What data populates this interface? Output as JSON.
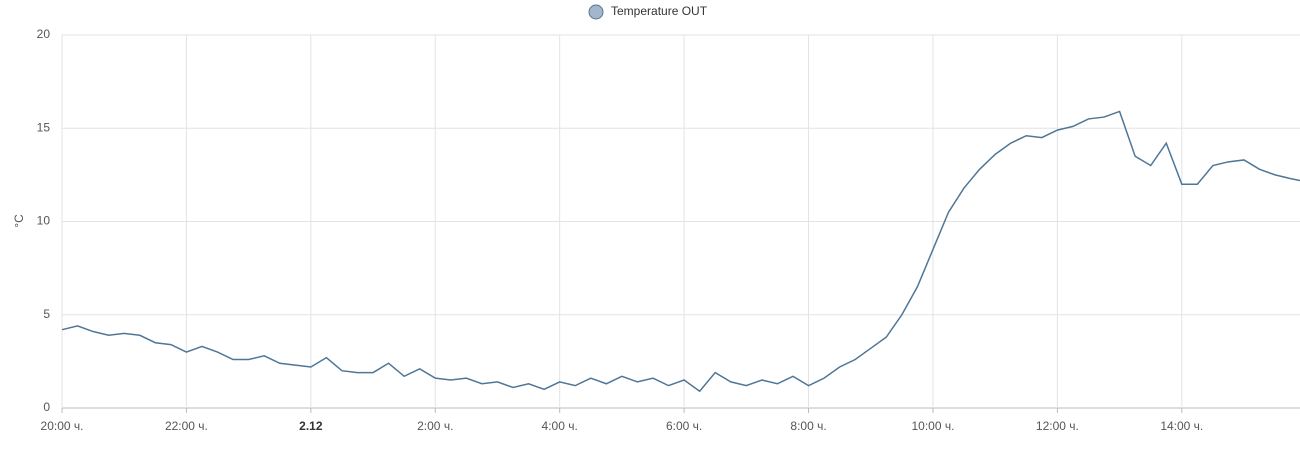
{
  "chart_data": {
    "type": "line",
    "series": [
      {
        "name": "Temperature OUT",
        "color": "#4f7696",
        "legend_fill": "#a3b6cc",
        "values": [
          4.2,
          4.4,
          4.1,
          3.9,
          4.0,
          3.9,
          3.5,
          3.4,
          3.0,
          3.3,
          3.0,
          2.6,
          2.6,
          2.8,
          2.4,
          2.3,
          2.2,
          2.7,
          2.0,
          1.9,
          1.9,
          2.4,
          1.7,
          2.1,
          1.6,
          1.5,
          1.6,
          1.3,
          1.4,
          1.1,
          1.3,
          1.0,
          1.4,
          1.2,
          1.6,
          1.3,
          1.7,
          1.4,
          1.6,
          1.2,
          1.5,
          0.9,
          1.9,
          1.4,
          1.2,
          1.5,
          1.3,
          1.7,
          1.2,
          1.6,
          2.2,
          2.6,
          3.2,
          3.8,
          5.0,
          6.5,
          8.5,
          10.5,
          11.8,
          12.8,
          13.6,
          14.2,
          14.6,
          14.5,
          14.9,
          15.1,
          15.5,
          15.6,
          15.9,
          13.5,
          13.0,
          14.2,
          12.0,
          12.0,
          13.0,
          13.2,
          13.3,
          12.8,
          12.5,
          12.3,
          12.2
        ]
      }
    ],
    "x": [
      0,
      0.25,
      0.5,
      0.75,
      1,
      1.25,
      1.5,
      1.75,
      2,
      2.25,
      2.5,
      2.75,
      3,
      3.25,
      3.5,
      3.75,
      4,
      4.25,
      4.5,
      4.75,
      5,
      5.25,
      5.5,
      5.75,
      6,
      6.25,
      6.5,
      6.75,
      7,
      7.25,
      7.5,
      7.75,
      8,
      8.25,
      8.5,
      8.75,
      9,
      9.25,
      9.5,
      9.75,
      10,
      10.25,
      10.5,
      10.75,
      11,
      11.25,
      11.5,
      11.75,
      12,
      12.25,
      12.5,
      12.75,
      13,
      13.25,
      13.5,
      13.75,
      14,
      14.25,
      14.5,
      14.75,
      15,
      15.25,
      15.5,
      15.75,
      16,
      16.25,
      16.5,
      16.75,
      17,
      17.25,
      17.5,
      17.75,
      18,
      18.25,
      18.5,
      18.75,
      19,
      19.25,
      19.5,
      19.75,
      19.9
    ],
    "xlim": [
      0,
      19.9
    ],
    "xticks": [
      {
        "value": 0,
        "label": "20:00 ч."
      },
      {
        "value": 2,
        "label": "22:00 ч."
      },
      {
        "value": 4,
        "label": "2.12",
        "bold": true
      },
      {
        "value": 6,
        "label": "2:00 ч."
      },
      {
        "value": 8,
        "label": "4:00 ч."
      },
      {
        "value": 10,
        "label": "6:00 ч."
      },
      {
        "value": 12,
        "label": "8:00 ч."
      },
      {
        "value": 14,
        "label": "10:00 ч."
      },
      {
        "value": 16,
        "label": "12:00 ч."
      },
      {
        "value": 18,
        "label": "14:00 ч."
      }
    ],
    "ylabel": "°C",
    "ylim": [
      0,
      20
    ],
    "yticks": [
      0,
      5,
      10,
      15,
      20
    ],
    "grid": true
  }
}
